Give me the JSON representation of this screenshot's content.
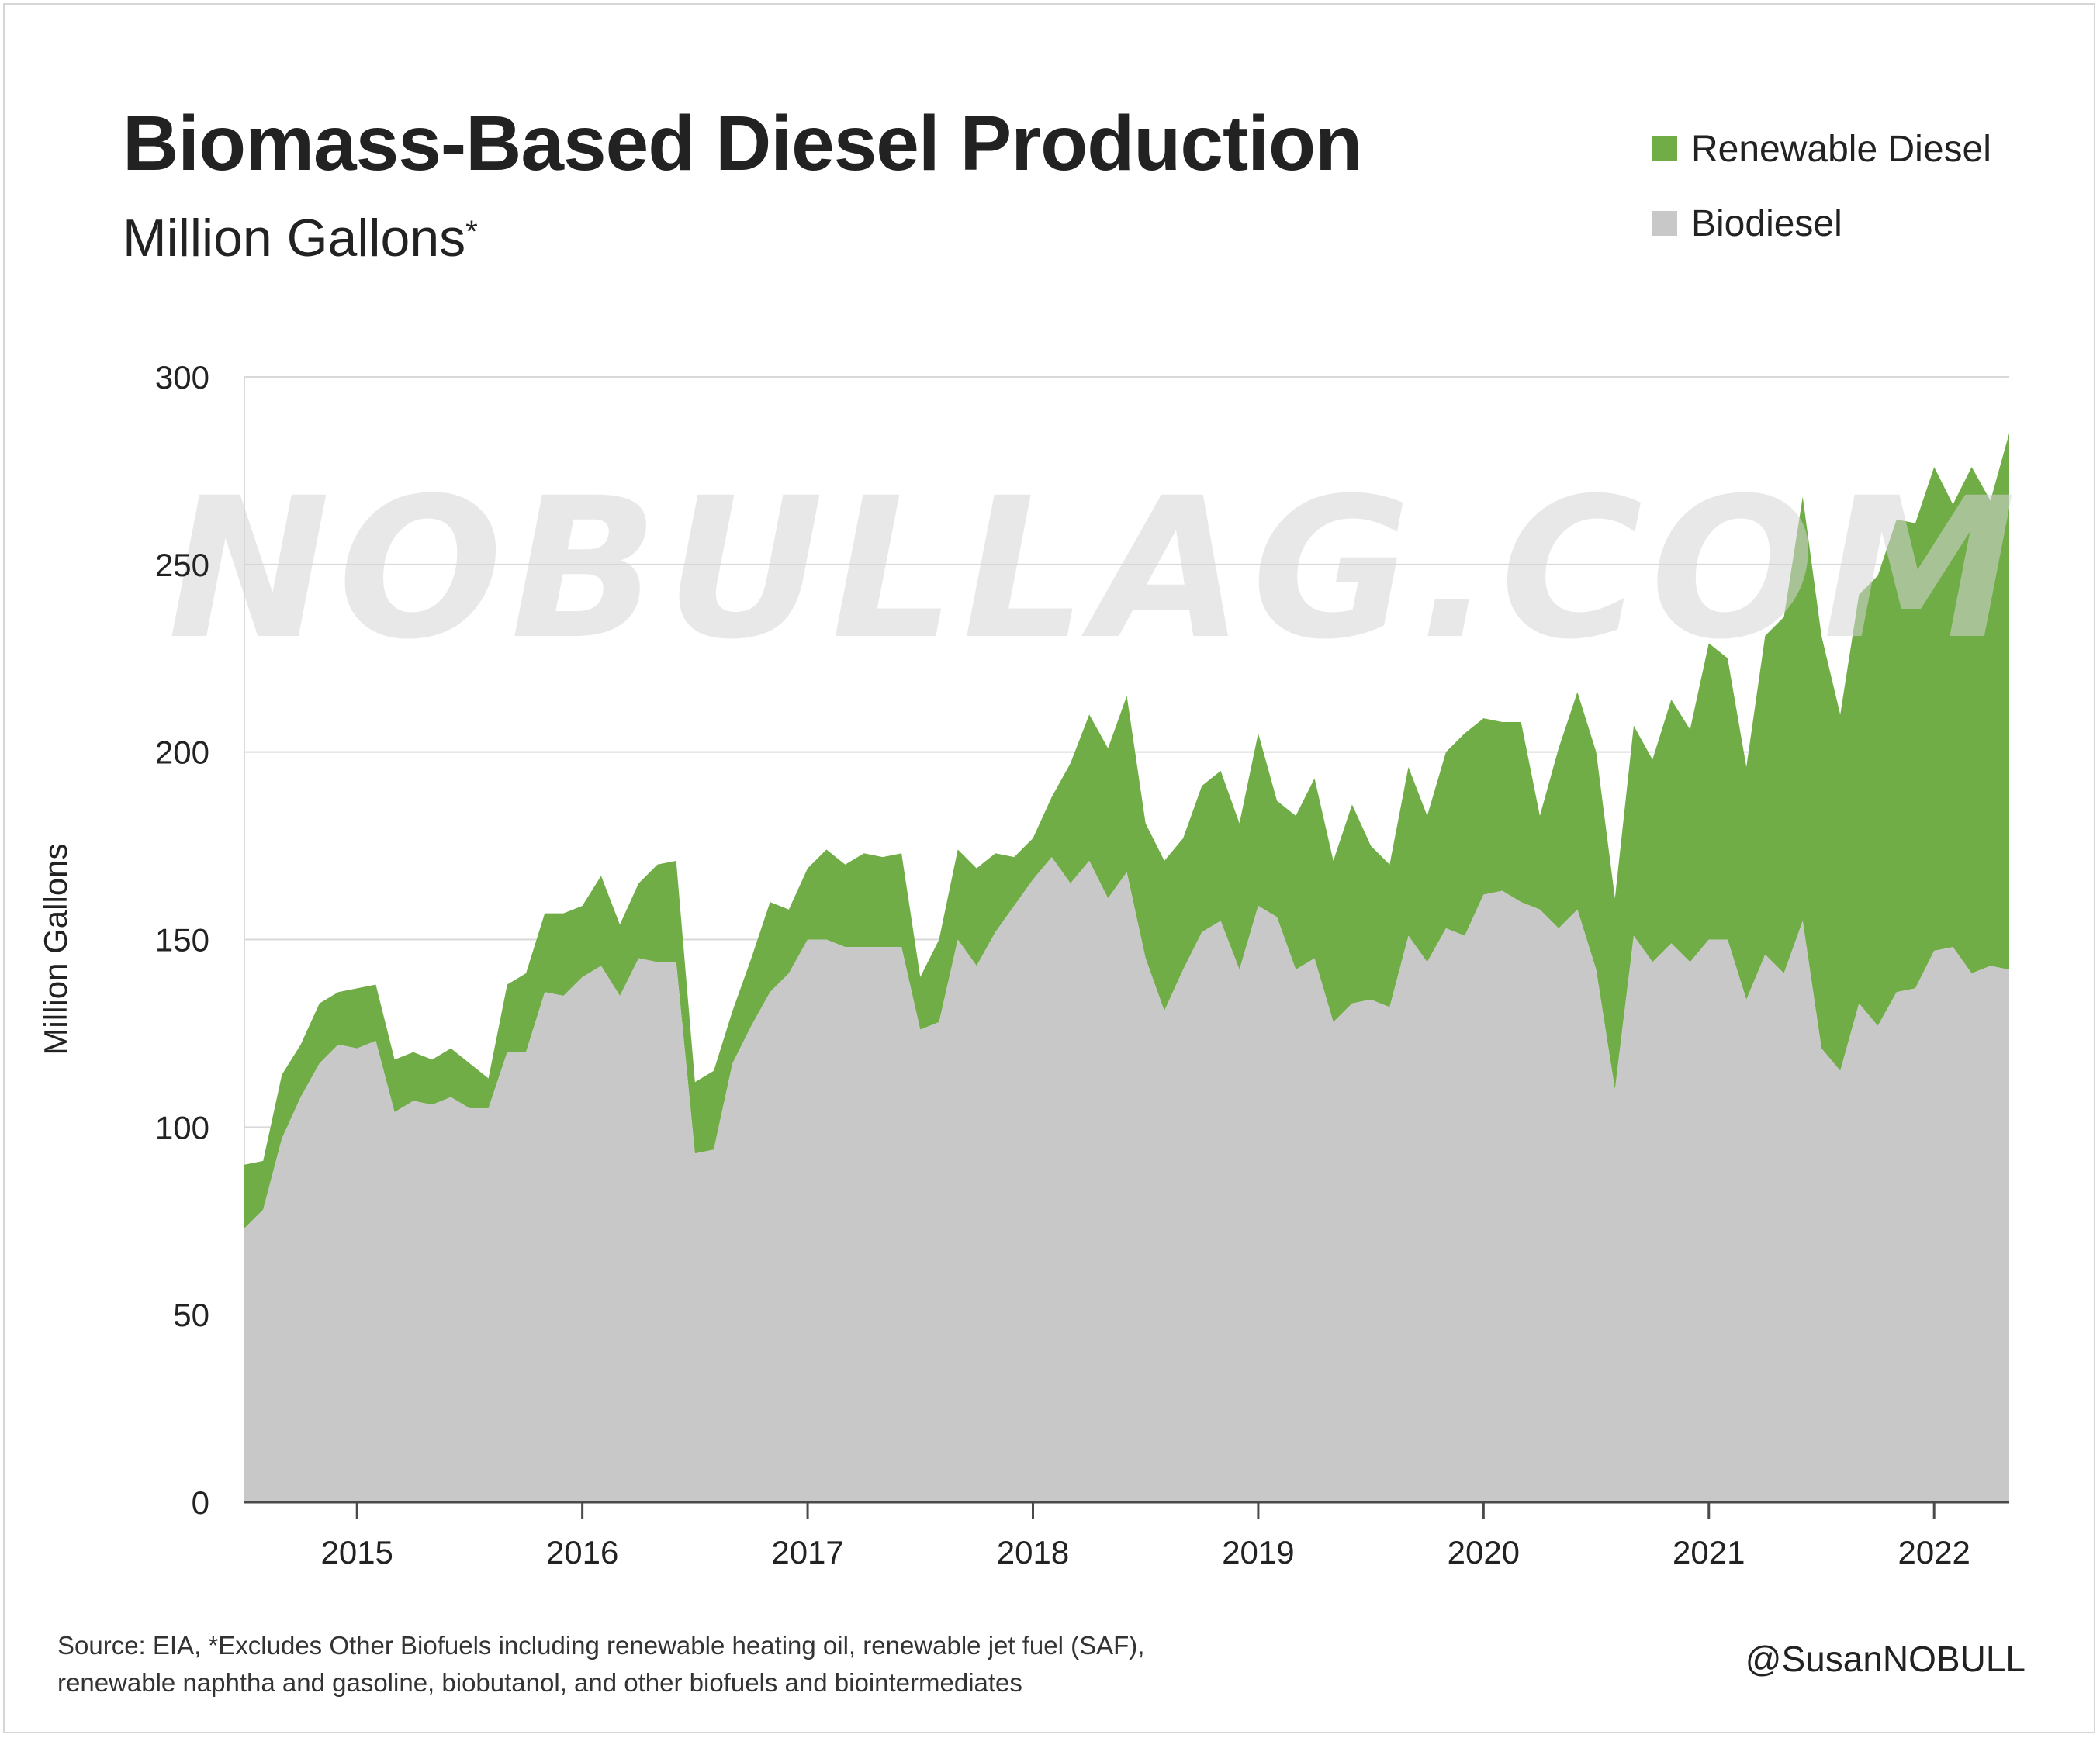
{
  "title": "Biomass-Based Diesel Production",
  "subtitle": "Million Gallons",
  "subtitle_mark": "*",
  "watermark": "NOBULLAG.COM",
  "legend": [
    {
      "label": "Renewable Diesel",
      "color": "#70ad47"
    },
    {
      "label": "Biodiesel",
      "color": "#c8c8c8"
    }
  ],
  "source_line1": "Source: EIA, *Excludes Other Biofuels including renewable heating oil, renewable jet fuel (SAF),",
  "source_line2": "renewable naphtha and gasoline, biobutanol, and other biofuels and biointermediates",
  "handle": "@SusanNOBULL",
  "chart_data": {
    "type": "area",
    "stacked": true,
    "title": "Biomass-Based Diesel Production",
    "subtitle": "Million Gallons*",
    "xlabel": "",
    "ylabel": "Million Gallons",
    "ylim": [
      0,
      300
    ],
    "yticks": [
      0,
      50,
      100,
      150,
      200,
      250,
      300
    ],
    "xticks": [
      "2015",
      "2016",
      "2017",
      "2018",
      "2019",
      "2020",
      "2021",
      "2022"
    ],
    "x_start": "2014-07",
    "x_end": "2022-07",
    "grid": true,
    "legend_position": "top-right",
    "colors": {
      "Renewable Diesel": "#70ad47",
      "Biodiesel": "#c8c8c8"
    },
    "series": [
      {
        "name": "Biodiesel",
        "values": [
          73,
          78,
          97,
          108,
          117,
          122,
          121,
          123,
          104,
          107,
          106,
          108,
          105,
          105,
          120,
          120,
          136,
          135,
          140,
          143,
          135,
          145,
          144,
          144,
          93,
          94,
          117,
          127,
          136,
          141,
          150,
          150,
          148,
          148,
          148,
          148,
          126,
          128,
          150,
          143,
          152,
          159,
          166,
          172,
          165,
          171,
          161,
          168,
          145,
          131,
          142,
          152,
          155,
          142,
          159,
          156,
          142,
          145,
          128,
          133,
          134,
          132,
          151,
          144,
          153,
          151,
          162,
          163,
          160,
          158,
          153,
          158,
          142,
          110,
          151,
          144,
          149,
          144,
          150,
          150,
          134,
          146,
          141,
          155,
          121,
          115,
          133,
          127,
          136,
          137,
          147,
          148,
          141,
          143,
          142
        ]
      },
      {
        "name": "Renewable Diesel",
        "values": [
          17,
          13,
          17,
          14,
          16,
          14,
          16,
          15,
          14,
          13,
          12,
          13,
          12,
          8,
          18,
          21,
          21,
          22,
          19,
          24,
          19,
          20,
          26,
          27,
          19,
          21,
          14,
          18,
          24,
          17,
          19,
          24,
          22,
          25,
          24,
          25,
          14,
          22,
          24,
          26,
          21,
          13,
          11,
          16,
          32,
          39,
          40,
          47,
          36,
          40,
          35,
          39,
          40,
          39,
          46,
          31,
          41,
          48,
          43,
          53,
          41,
          38,
          45,
          39,
          47,
          54,
          47,
          45,
          48,
          25,
          48,
          58,
          58,
          51,
          56,
          54,
          65,
          62,
          79,
          75,
          62,
          85,
          95,
          113,
          110,
          95,
          109,
          120,
          126,
          124,
          129,
          118,
          135,
          124,
          143
        ]
      }
    ]
  }
}
